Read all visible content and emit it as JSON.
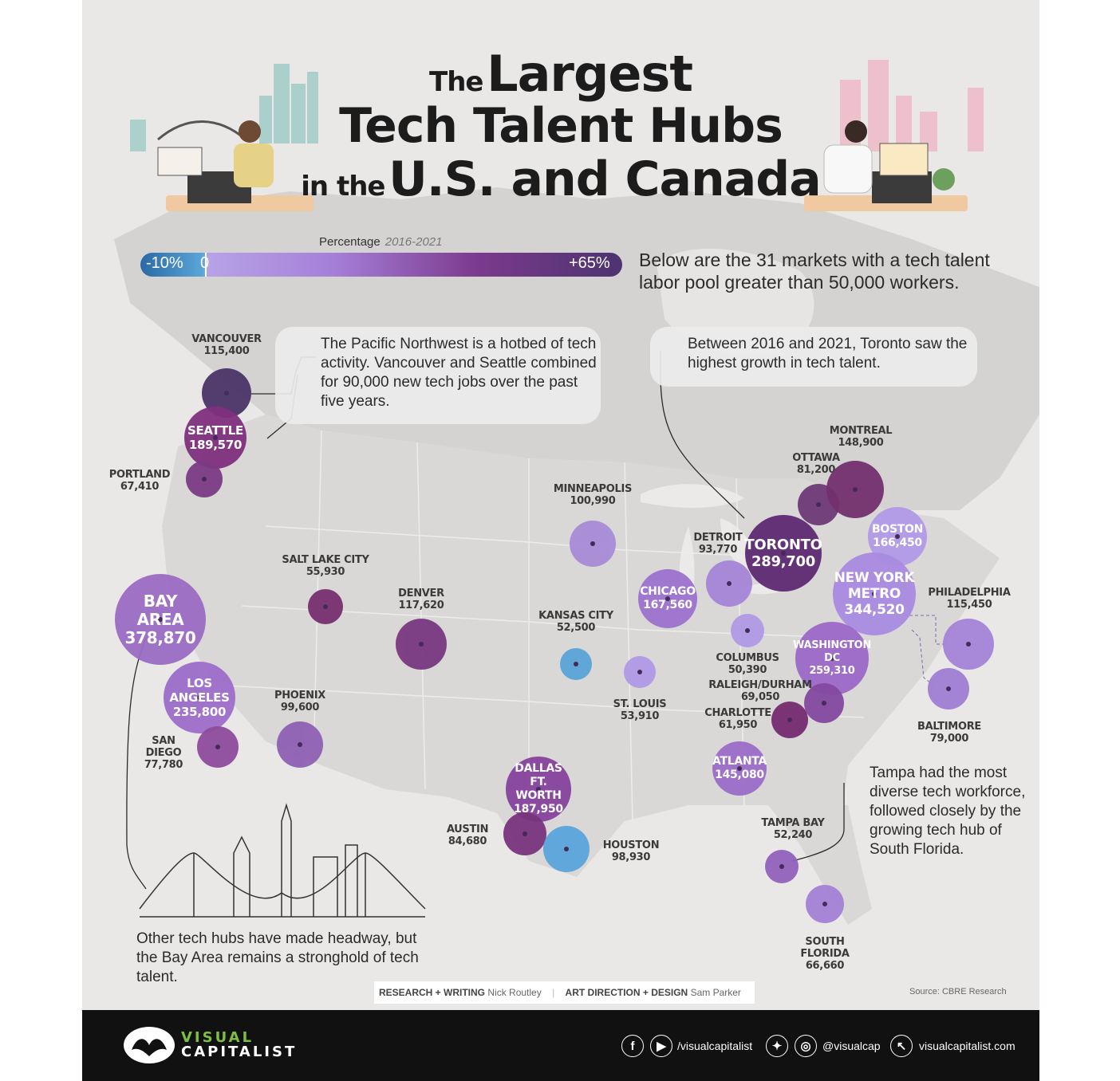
{
  "title": {
    "line1_small": "The",
    "line1_big": "Largest",
    "line2": "Tech Talent Hubs",
    "line3_small": "in the",
    "line3_big": "U.S. and Canada"
  },
  "legend": {
    "title": "Percentage",
    "period": "2016-2021",
    "min_label": "-10%",
    "zero_label": "0",
    "max_label": "+65%",
    "colors": [
      "#2a6aa6",
      "#b7a3e6",
      "#7b3a8d",
      "#4d3470"
    ]
  },
  "intro": "Below are the 31 markets with a tech talent labor pool greater than 50,000 workers.",
  "callouts": {
    "pacific": "The Pacific Northwest is a hotbed of tech activity. Vancouver and Seattle combined for 90,000 new tech jobs over the past five years.",
    "toronto": "Between 2016 and 2021, Toronto saw the highest growth in tech talent.",
    "tampa": "Tampa had the most diverse tech workforce, followed closely by the growing tech hub of South Florida.",
    "bay": "Other tech hubs have made headway, but the Bay Area remains a stronghold of tech talent."
  },
  "cities": [
    {
      "name": "VANCOUVER",
      "value": "115,400",
      "color": "#4b3468"
    },
    {
      "name": "SEATTLE",
      "value": "189,570",
      "color": "#80307e"
    },
    {
      "name": "PORTLAND",
      "value": "67,410",
      "color": "#7c3b84"
    },
    {
      "name": "BAY AREA",
      "value": "378,870",
      "color": "#9b6cc4"
    },
    {
      "name": "LOS ANGELES",
      "value": "235,800",
      "color": "#9d6dc9"
    },
    {
      "name": "SAN DIEGO",
      "value": "77,780",
      "color": "#8e4d9e"
    },
    {
      "name": "SALT LAKE CITY",
      "value": "55,930",
      "color": "#78306f"
    },
    {
      "name": "PHOENIX",
      "value": "99,600",
      "color": "#9060b4"
    },
    {
      "name": "DENVER",
      "value": "117,620",
      "color": "#7a3880"
    },
    {
      "name": "MINNEAPOLIS",
      "value": "100,990",
      "color": "#a88cd8"
    },
    {
      "name": "KANSAS CITY",
      "value": "52,500",
      "color": "#5aa4d8"
    },
    {
      "name": "ST. LOUIS",
      "value": "53,910",
      "color": "#b099e6"
    },
    {
      "name": "CHICAGO",
      "value": "167,560",
      "color": "#9c72cf"
    },
    {
      "name": "DETROIT",
      "value": "93,770",
      "color": "#a585d8"
    },
    {
      "name": "TORONTO",
      "value": "289,700",
      "color": "#5e2a72"
    },
    {
      "name": "OTTAWA",
      "value": "81,200",
      "color": "#6e3a78"
    },
    {
      "name": "MONTREAL",
      "value": "148,900",
      "color": "#73306e"
    },
    {
      "name": "BOSTON",
      "value": "166,450",
      "color": "#b29ae8"
    },
    {
      "name": "NEW YORK METRO",
      "value": "344,520",
      "color": "#a98be0"
    },
    {
      "name": "COLUMBUS",
      "value": "50,390",
      "color": "#b09ae6"
    },
    {
      "name": "WASHINGTON DC",
      "value": "259,310",
      "color": "#9b69c8"
    },
    {
      "name": "PHILADELPHIA",
      "value": "115,450",
      "color": "#a583d8"
    },
    {
      "name": "BALTIMORE",
      "value": "79,000",
      "color": "#a07ed3"
    },
    {
      "name": "RALEIGH/DURHAM",
      "value": "69,050",
      "color": "#8449a0"
    },
    {
      "name": "CHARLOTTE",
      "value": "61,950",
      "color": "#752c70"
    },
    {
      "name": "ATLANTA",
      "value": "145,080",
      "color": "#9c6dc9"
    },
    {
      "name": "DALLAS FT. WORTH",
      "value": "187,950",
      "color": "#85439d"
    },
    {
      "name": "AUSTIN",
      "value": "84,680",
      "color": "#7a347e"
    },
    {
      "name": "HOUSTON",
      "value": "98,930",
      "color": "#5aa5dc"
    },
    {
      "name": "TAMPA BAY",
      "value": "52,240",
      "color": "#9262bc"
    },
    {
      "name": "SOUTH FLORIDA",
      "value": "66,660",
      "color": "#a481d6"
    }
  ],
  "credits": {
    "research_label": "RESEARCH + WRITING",
    "research_name": "Nick Routley",
    "art_label": "ART DIRECTION + DESIGN",
    "art_name": "Sam Parker",
    "source": "Source: CBRE Research"
  },
  "footer": {
    "brand_line1": "VISUAL",
    "brand_line2": "CAPITALIST",
    "handle1": "/visualcapitalist",
    "handle2": "@visualcap",
    "website": "visualcapitalist.com"
  }
}
